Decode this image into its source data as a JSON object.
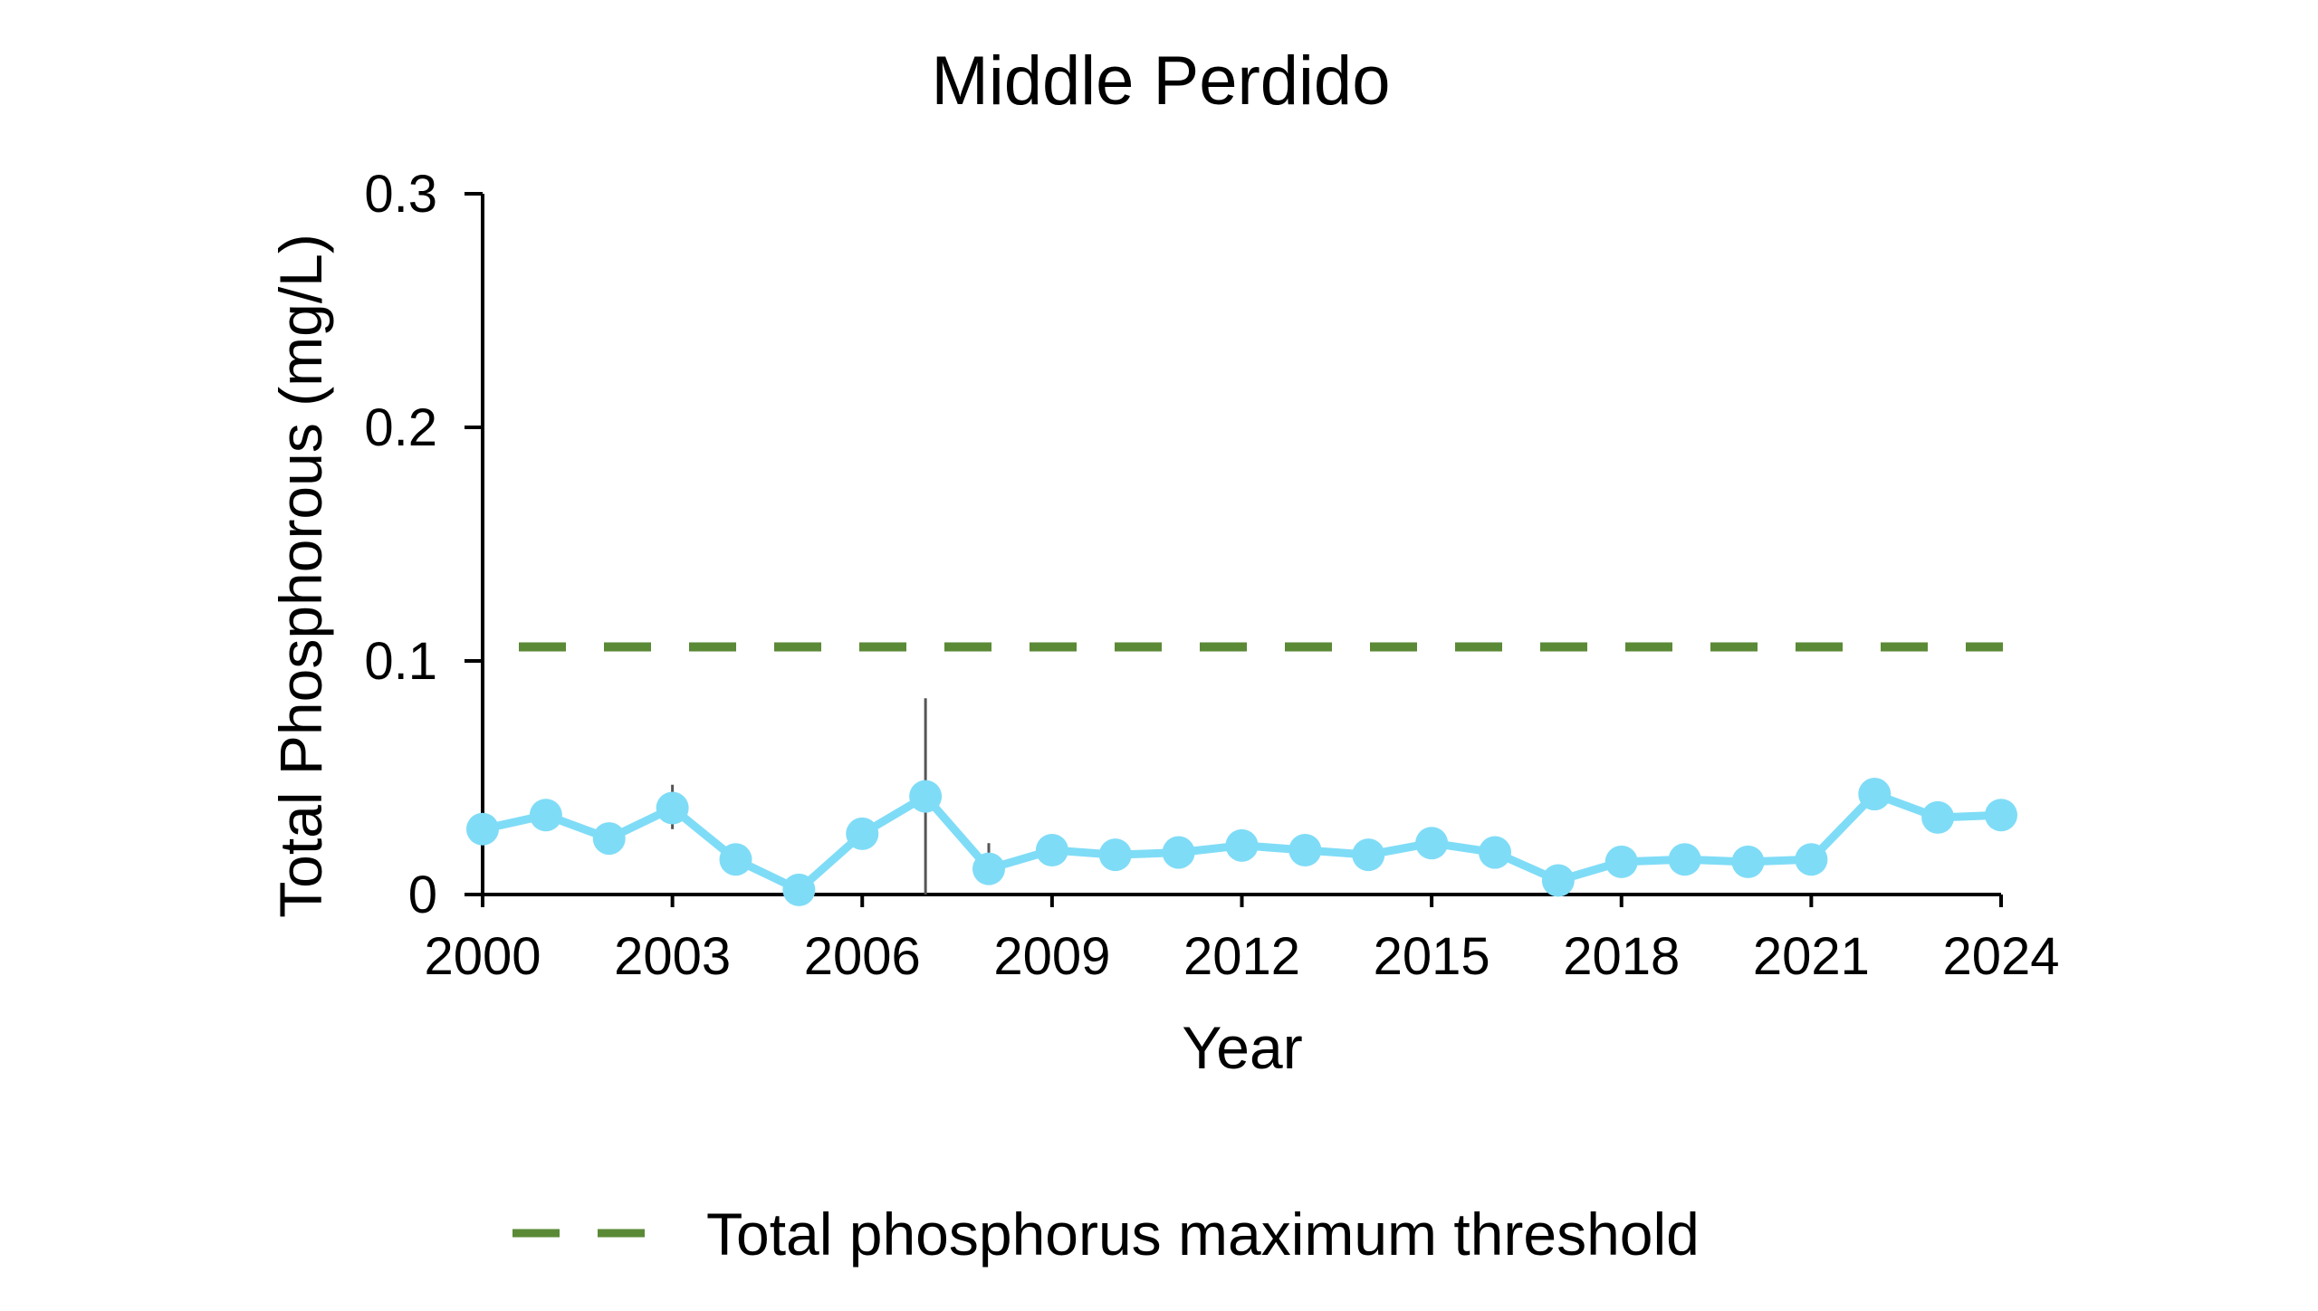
{
  "chart_data": {
    "type": "line",
    "title": "Middle Perdido",
    "xlabel": "Year",
    "ylabel": "Total Phosphorous (mg/L)",
    "xlim": [
      2000,
      2024
    ],
    "ylim": [
      0,
      0.3
    ],
    "x_ticks": [
      "2000",
      "2003",
      "2006",
      "2009",
      "2012",
      "2015",
      "2018",
      "2021",
      "2024"
    ],
    "y_ticks": [
      "0",
      "0.1",
      "0.2",
      "0.3"
    ],
    "grid": false,
    "legend_position": "bottom",
    "series": [
      {
        "color": "#7fdcf7",
        "marker": "circle",
        "x": [
          2000,
          2001,
          2002,
          2003,
          2004,
          2005,
          2006,
          2007,
          2008,
          2009,
          2010,
          2011,
          2012,
          2013,
          2014,
          2015,
          2016,
          2017,
          2018,
          2019,
          2020,
          2021,
          2022,
          2023,
          2024
        ],
        "y": [
          0.028,
          0.034,
          0.024,
          0.037,
          0.015,
          0.002,
          0.026,
          0.042,
          0.011,
          0.019,
          0.017,
          0.018,
          0.021,
          0.019,
          0.017,
          0.022,
          0.018,
          0.006,
          0.014,
          0.015,
          0.014,
          0.015,
          0.043,
          0.033,
          0.034
        ]
      }
    ],
    "error_bars": [
      {
        "x": 2003,
        "low": 0.028,
        "high": 0.047
      },
      {
        "x": 2007,
        "low": 0.0,
        "high": 0.084
      },
      {
        "x": 2008,
        "low": 0.005,
        "high": 0.022
      }
    ],
    "reference_lines": [
      {
        "name": "Total phosphorus maximum threshold",
        "y": 0.106,
        "color": "#5b8a36",
        "style": "dashed"
      }
    ]
  }
}
